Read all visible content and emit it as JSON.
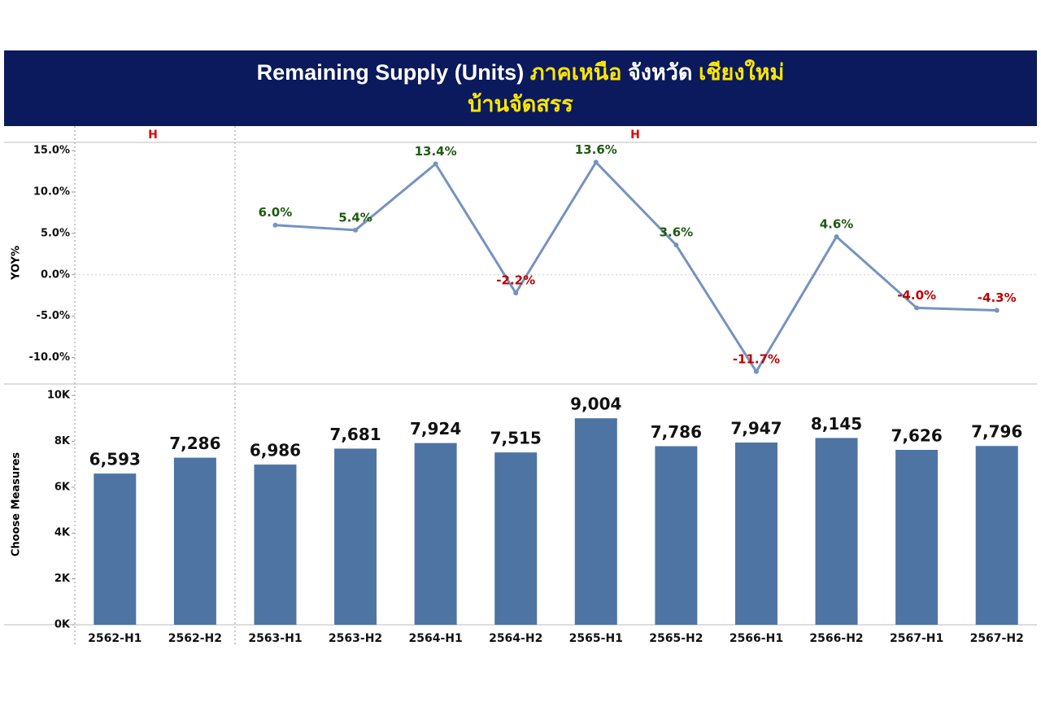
{
  "header": {
    "title_parts": [
      "Remaining Supply (Units)",
      "ภาคเหนือ",
      "จังหวัด",
      "เชียงใหม่"
    ],
    "subtitle": "บ้านจัดสรร",
    "column_headers": [
      "H",
      "H"
    ]
  },
  "chart_data": [
    {
      "type": "line",
      "y_label": "YOY%",
      "color": "#7593bf",
      "positive_label_color": "#1f5a12",
      "negative_label_color": "#c00000",
      "values": [
        null,
        null,
        6.0,
        5.4,
        13.4,
        -2.2,
        13.6,
        3.6,
        -11.7,
        4.6,
        -4.0,
        -4.3
      ],
      "value_labels": [
        null,
        null,
        "6.0%",
        "5.4%",
        "13.4%",
        "-2.2%",
        "13.6%",
        "3.6%",
        "-11.7%",
        "4.6%",
        "-4.0%",
        "-4.3%"
      ],
      "ylim": [
        -13,
        16
      ],
      "yticks": [
        {
          "value": 15,
          "label": "15.0%"
        },
        {
          "value": 10,
          "label": "10.0%"
        },
        {
          "value": 5,
          "label": "5.0%"
        },
        {
          "value": 0,
          "label": "0.0%"
        },
        {
          "value": -5,
          "label": "-5.0%"
        },
        {
          "value": -10,
          "label": "-10.0%"
        }
      ]
    },
    {
      "type": "bar",
      "y_label": "Choose Measures",
      "color": "#4e74a3",
      "categories": [
        "2562-H1",
        "2562-H2",
        "2563-H1",
        "2563-H2",
        "2564-H1",
        "2564-H2",
        "2565-H1",
        "2565-H2",
        "2566-H1",
        "2566-H2",
        "2567-H1",
        "2567-H2"
      ],
      "values": [
        6593,
        7286,
        6986,
        7681,
        7924,
        7515,
        9004,
        7786,
        7947,
        8145,
        7626,
        7796
      ],
      "value_labels": [
        "6,593",
        "7,286",
        "6,986",
        "7,681",
        "7,924",
        "7,515",
        "9,004",
        "7,786",
        "7,947",
        "8,145",
        "7,626",
        "7,796"
      ],
      "ylim": [
        0,
        10500
      ],
      "yticks": [
        {
          "value": 10000,
          "label": "10K"
        },
        {
          "value": 8000,
          "label": "8K"
        },
        {
          "value": 6000,
          "label": "6K"
        },
        {
          "value": 4000,
          "label": "4K"
        },
        {
          "value": 2000,
          "label": "2K"
        },
        {
          "value": 0,
          "label": "0K"
        }
      ]
    }
  ]
}
